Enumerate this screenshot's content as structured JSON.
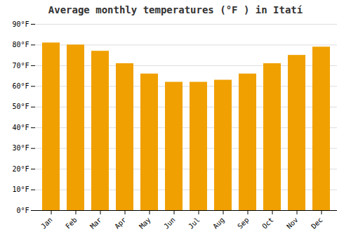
{
  "chart_data": {
    "type": "bar",
    "title": "Average monthly temperatures (°F ) in Itatí",
    "categories": [
      "Jan",
      "Feb",
      "Mar",
      "Apr",
      "May",
      "Jun",
      "Jul",
      "Aug",
      "Sep",
      "Oct",
      "Nov",
      "Dec"
    ],
    "values": [
      81,
      80,
      77,
      71,
      66,
      62,
      62,
      63,
      66,
      71,
      75,
      79
    ],
    "color": "#F0A000",
    "ylim": [
      0,
      90
    ],
    "yticks": [
      {
        "value": 0,
        "label": "0°F"
      },
      {
        "value": 10,
        "label": "10°F"
      },
      {
        "value": 20,
        "label": "20°F"
      },
      {
        "value": 30,
        "label": "30°F"
      },
      {
        "value": 40,
        "label": "40°F"
      },
      {
        "value": 50,
        "label": "50°F"
      },
      {
        "value": 60,
        "label": "60°F"
      },
      {
        "value": 70,
        "label": "70°F"
      },
      {
        "value": 80,
        "label": "80°F"
      },
      {
        "value": 90,
        "label": "90°F"
      }
    ],
    "grid": true
  }
}
